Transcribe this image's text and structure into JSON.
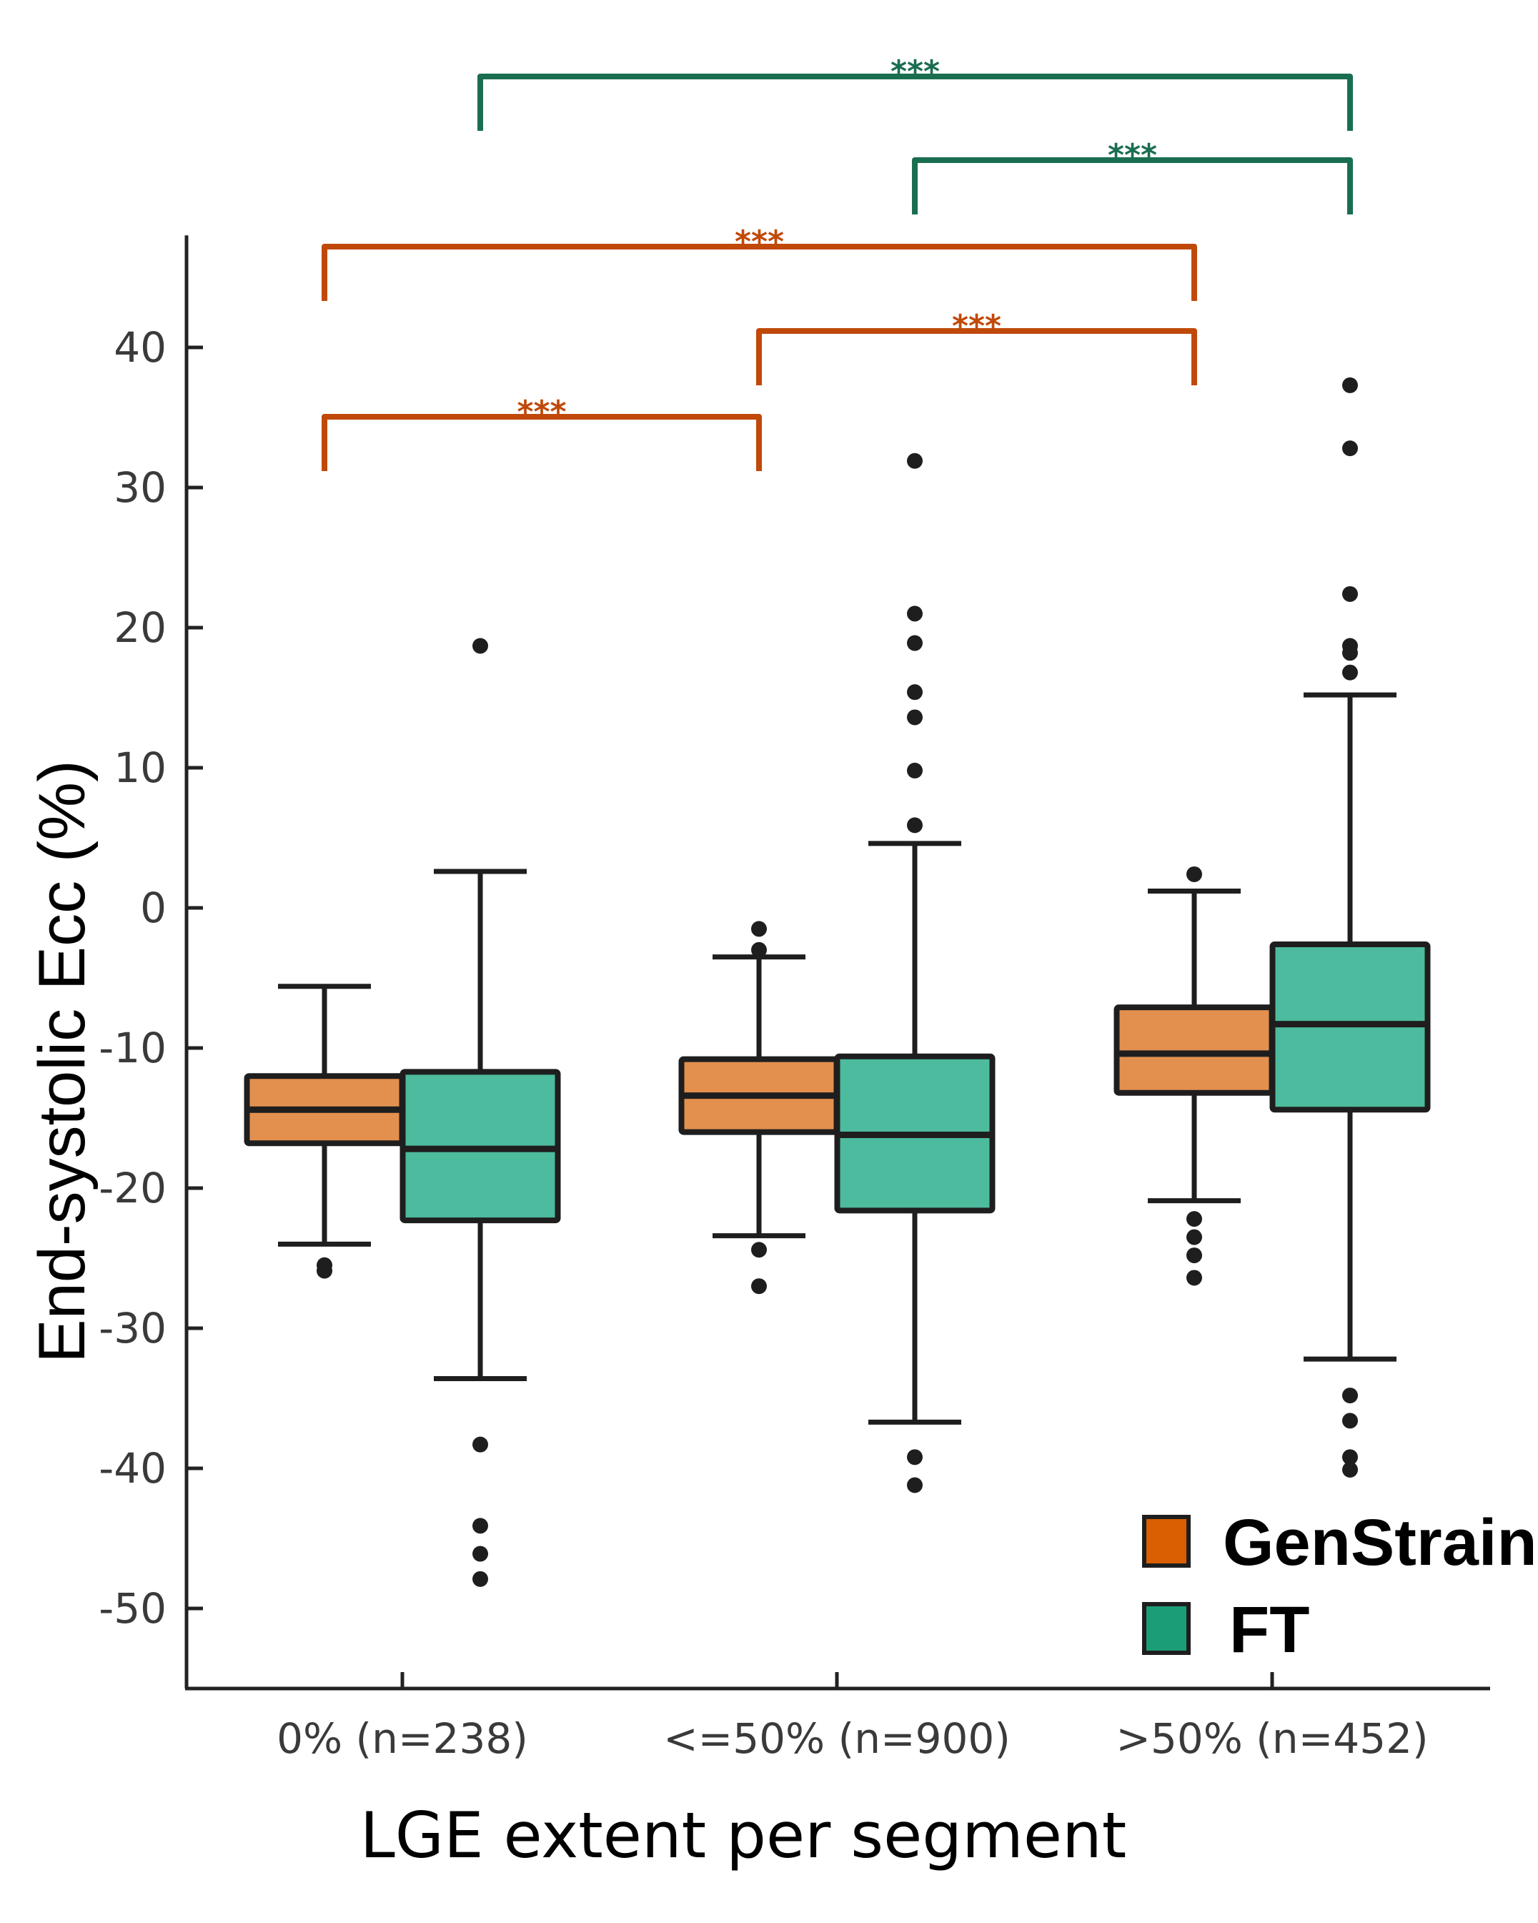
{
  "chart_data": {
    "type": "box",
    "title": "",
    "xlabel": "LGE extent per segment",
    "ylabel": "End-systolic Ecc (%)",
    "ylim": [
      -55,
      48
    ],
    "yticks": [
      40,
      30,
      20,
      10,
      0,
      -10,
      -20,
      -30,
      -40,
      -50
    ],
    "grid": false,
    "legend_position": "bottom-right",
    "categories": [
      "0% (n=238)",
      "<=50% (n=900)",
      ">50% (n=452)"
    ],
    "series": [
      {
        "name": "GenStrain",
        "legend_color": "#d95f02",
        "box_color": "#e3904f",
        "boxes": [
          {
            "whisker_low": -24.0,
            "q1": -16.8,
            "median": -14.4,
            "q3": -12.0,
            "whisker_high": -5.6,
            "outliers": [
              -25.5,
              -25.9
            ]
          },
          {
            "whisker_low": -23.4,
            "q1": -16.0,
            "median": -13.4,
            "q3": -10.8,
            "whisker_high": -3.5,
            "outliers": [
              -1.5,
              -3.0,
              -24.4,
              -27.0
            ]
          },
          {
            "whisker_low": -20.9,
            "q1": -13.2,
            "median": -10.4,
            "q3": -7.1,
            "whisker_high": 1.2,
            "outliers": [
              2.4,
              -22.2,
              -23.5,
              -24.8,
              -26.4
            ]
          }
        ]
      },
      {
        "name": "FT",
        "legend_color": "#1b9e77",
        "box_color": "#4dbb9d",
        "boxes": [
          {
            "whisker_low": -33.6,
            "q1": -22.3,
            "median": -17.2,
            "q3": -11.7,
            "whisker_high": 2.6,
            "outliers": [
              18.7,
              -38.3,
              -44.1,
              -46.1,
              -47.9
            ]
          },
          {
            "whisker_low": -36.7,
            "q1": -21.6,
            "median": -16.2,
            "q3": -10.6,
            "whisker_high": 4.6,
            "outliers": [
              31.9,
              21.0,
              18.9,
              15.4,
              13.6,
              9.8,
              5.9,
              -39.2,
              -41.2
            ]
          },
          {
            "whisker_low": -32.2,
            "q1": -14.4,
            "median": -8.3,
            "q3": -2.6,
            "whisker_high": 15.2,
            "outliers": [
              37.3,
              32.8,
              22.4,
              18.7,
              18.2,
              16.8,
              -34.8,
              -36.6,
              -39.2,
              -40.1
            ]
          }
        ]
      }
    ],
    "significance": [
      {
        "series": "FT",
        "from_category": 0,
        "to_category": 2,
        "label": "***",
        "color": "#1a6e50",
        "level": 5
      },
      {
        "series": "FT",
        "from_category": 1,
        "to_category": 2,
        "label": "***",
        "color": "#1a6e50",
        "level": 4
      },
      {
        "series": "GenStrain",
        "from_category": 0,
        "to_category": 2,
        "label": "***",
        "color": "#c0490a",
        "level": 3
      },
      {
        "series": "GenStrain",
        "from_category": 1,
        "to_category": 2,
        "label": "***",
        "color": "#c0490a",
        "level": 2
      },
      {
        "series": "GenStrain",
        "from_category": 0,
        "to_category": 1,
        "label": "***",
        "color": "#c0490a",
        "level": 1
      }
    ]
  }
}
